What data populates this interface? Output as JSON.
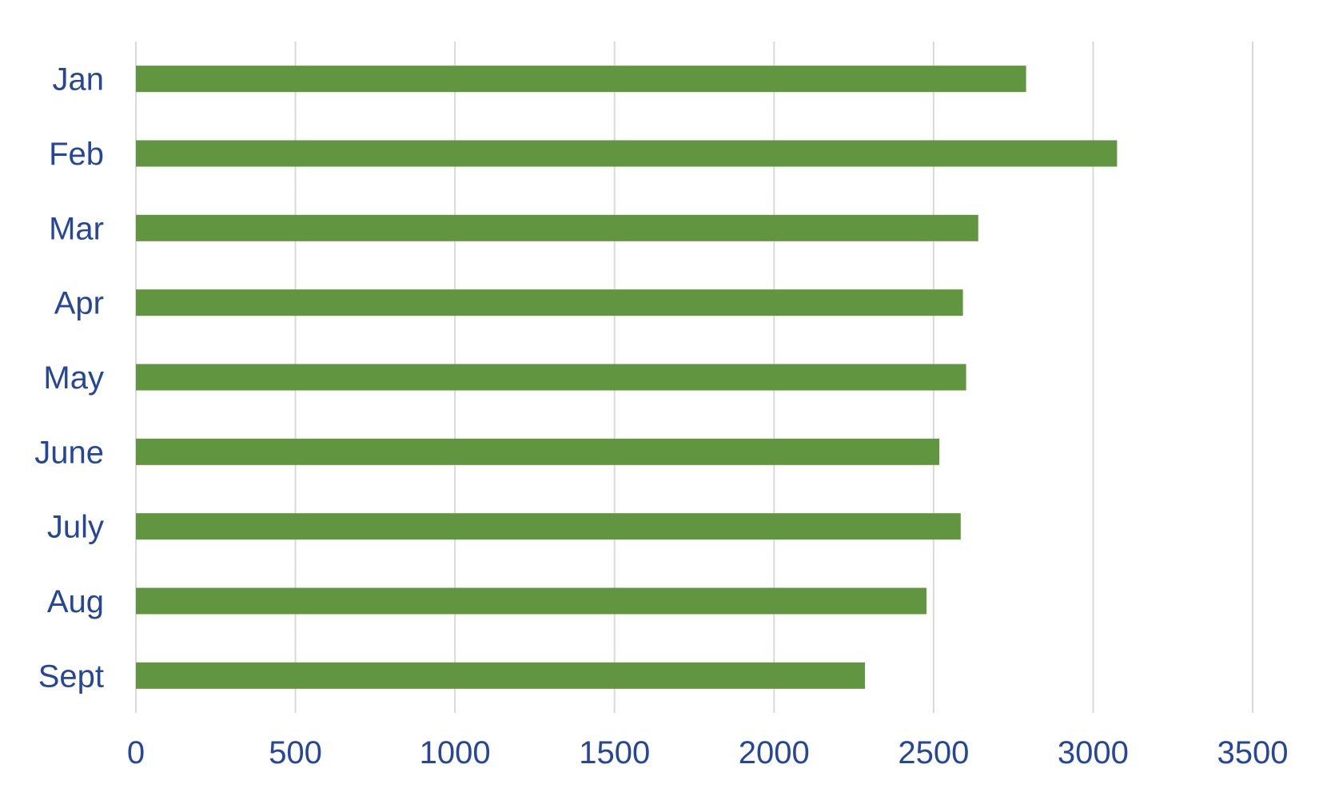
{
  "chart_data": {
    "type": "bar",
    "orientation": "horizontal",
    "categories": [
      "Jan",
      "Feb",
      "Mar",
      "Apr",
      "May",
      "June",
      "July",
      "Aug",
      "Sept"
    ],
    "values": [
      2790,
      3075,
      2640,
      2592,
      2602,
      2518,
      2585,
      2478,
      2285
    ],
    "title": "",
    "xlabel": "",
    "ylabel": "",
    "xlim": [
      0,
      3500
    ],
    "xticks": [
      "0",
      "500",
      "1000",
      "1500",
      "2000",
      "2500",
      "3000",
      "3500"
    ],
    "grid": "vertical",
    "legend": "none",
    "colors": {
      "bar": "#619540",
      "text": "#264799",
      "grid": "#d9d9d9"
    }
  }
}
